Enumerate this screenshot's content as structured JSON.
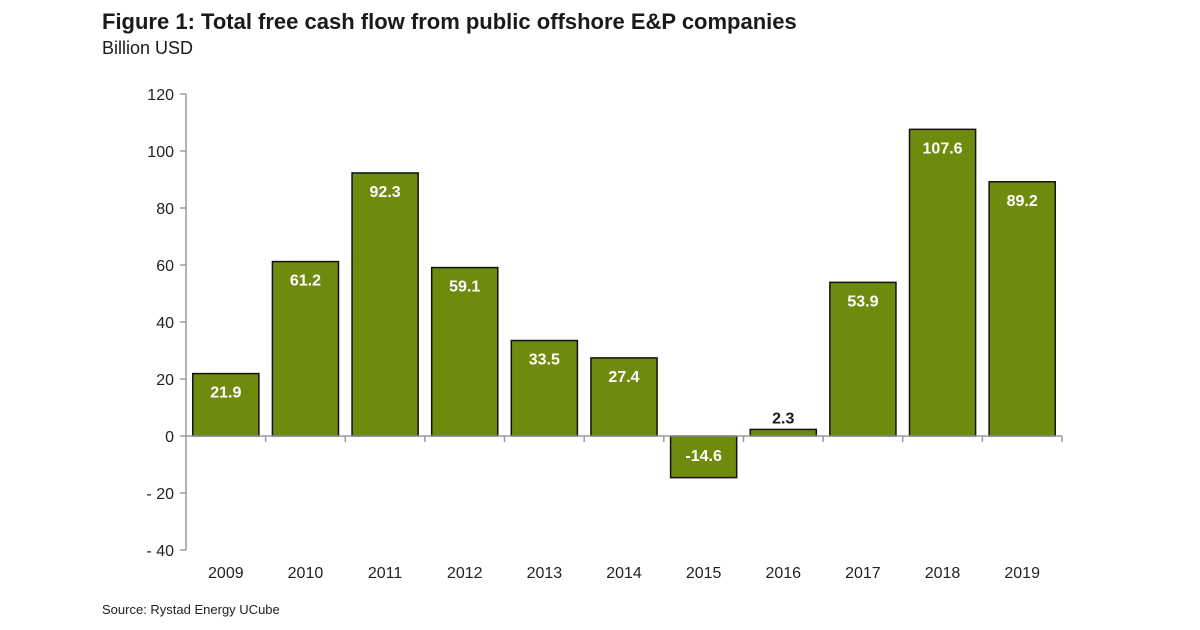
{
  "chart_data": {
    "type": "bar",
    "title": "Figure 1: Total free cash flow from public offshore E&P companies",
    "subtitle": "Billion USD",
    "xlabel": "",
    "ylabel": "Billion USD",
    "categories": [
      "2009",
      "2010",
      "2011",
      "2012",
      "2013",
      "2014",
      "2015",
      "2016",
      "2017",
      "2018",
      "2019"
    ],
    "values": [
      21.9,
      61.2,
      92.3,
      59.1,
      33.5,
      27.4,
      -14.6,
      2.3,
      53.9,
      107.6,
      89.2
    ],
    "value_labels": [
      "21.9",
      "61.2",
      "92.3",
      "59.1",
      "33.5",
      "27.4",
      "-14.6",
      "2.3",
      "53.9",
      "107.6",
      "89.2"
    ],
    "ylim": [
      -40,
      120
    ],
    "yticks": [
      120,
      100,
      80,
      60,
      40,
      20,
      0,
      -20,
      -40
    ],
    "ytick_labels": [
      "120",
      "100",
      "80",
      "60",
      "40",
      "20",
      "0",
      "- 20",
      "- 40"
    ],
    "grid": false,
    "legend": "none",
    "colors": {
      "bar": "#6e8b0e",
      "bar_edge": "#111111",
      "axis": "#9a9a9a"
    },
    "source": "Source: Rystad Energy UCube"
  }
}
